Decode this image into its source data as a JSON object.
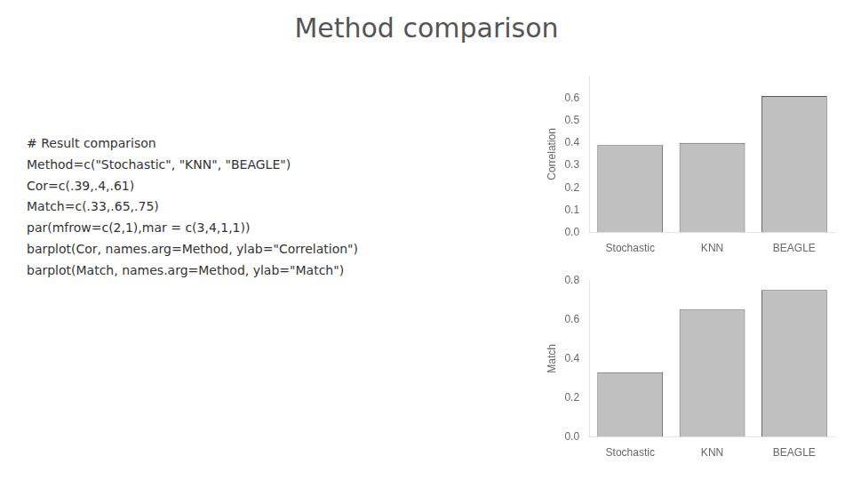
{
  "title": "Method comparison",
  "annotations": [
    "# Result comparison\nMethod=c(\"Stochastic\", \"KNN\", \"BEAGLE\")\nCor=c(.39,.4,.61)\nMatch=c(.33,.65,.75)\npar(mfrow=c(2,1),mar = c(3,4,1,1))\nbarplot(Cor, names.arg=Method, ylab=\"Correlation\")\nbarplot(Match, names.arg=Method, ylab=\"Match\")"
  ],
  "chart_data": [
    {
      "type": "bar",
      "categories": [
        "Stochastic",
        "KNN",
        "BEAGLE"
      ],
      "values": [
        0.39,
        0.4,
        0.61
      ],
      "color": "#c0c0c0",
      "ylabel": "Correlation",
      "ylim": [
        0.0,
        0.7
      ],
      "yticks": [
        {
          "value": 0.0,
          "label": "0.0"
        },
        0.1,
        0.2,
        0.3,
        0.4,
        0.5,
        0.6
      ],
      "grid": false,
      "legend": false
    },
    {
      "type": "bar",
      "categories": [
        "Stochastic",
        "KNN",
        "BEAGLE"
      ],
      "values": [
        0.33,
        0.65,
        0.75
      ],
      "color": "#c0c0c0",
      "ylabel": "Match",
      "ylim": [
        0.0,
        0.8
      ],
      "yticks": [
        {
          "value": 0.0,
          "label": "0.0"
        },
        0.2,
        0.4,
        0.6,
        0.8
      ],
      "grid": false,
      "legend": false
    }
  ]
}
